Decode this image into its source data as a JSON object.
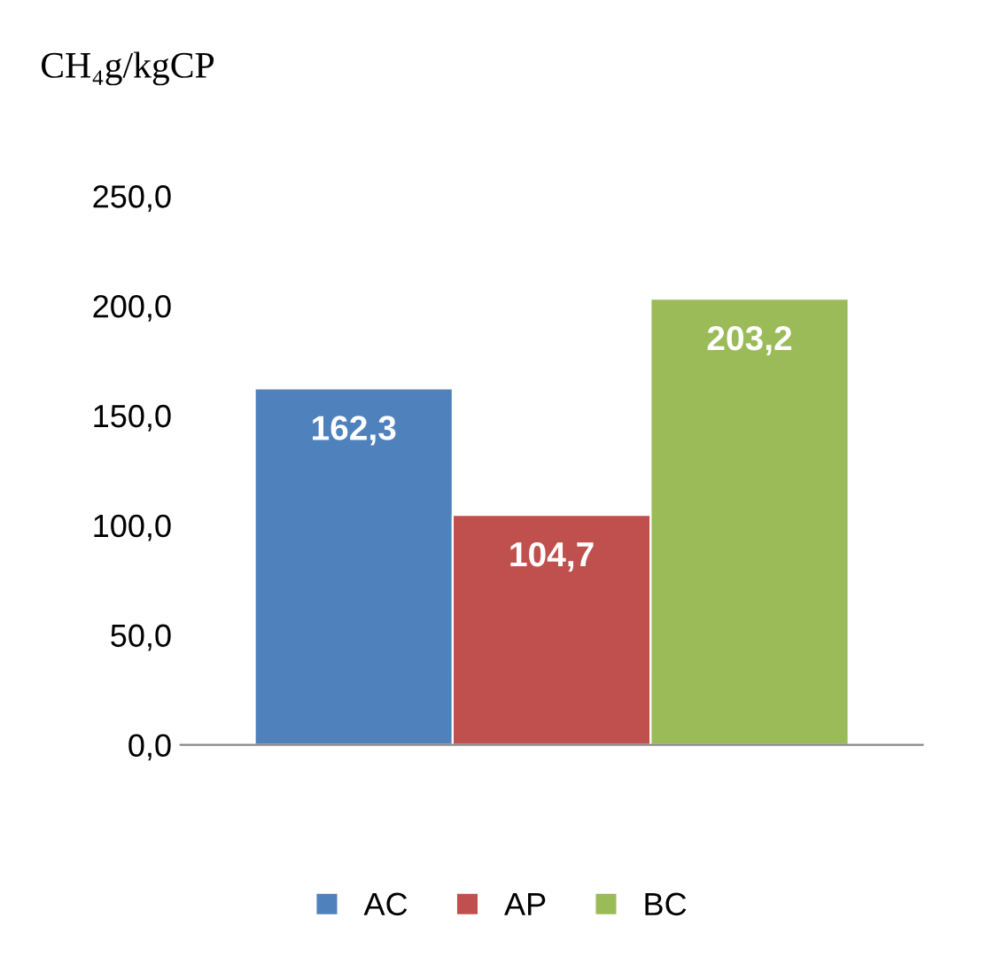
{
  "chart_data": {
    "type": "bar",
    "title": "CH₄g/kgCP",
    "categories": [
      null
    ],
    "series": [
      {
        "name": "AC",
        "color": "#4f81bd",
        "values": [
          162.3
        ],
        "value_labels": [
          "162,3"
        ]
      },
      {
        "name": "AP",
        "color": "#c0504d",
        "values": [
          104.7
        ],
        "value_labels": [
          "104,7"
        ]
      },
      {
        "name": "BC",
        "color": "#9bbb59",
        "values": [
          203.2
        ],
        "value_labels": [
          "203,2"
        ]
      }
    ],
    "ylim": [
      0,
      250
    ],
    "yticks": [
      {
        "value": 0,
        "label": "0,0"
      },
      {
        "value": 50,
        "label": "50,0"
      },
      {
        "value": 100,
        "label": "100,0"
      },
      {
        "value": 150,
        "label": "150,0"
      },
      {
        "value": 200,
        "label": "200,0"
      },
      {
        "value": 250,
        "label": "250,0"
      }
    ],
    "grid": false,
    "legend": "bottom"
  }
}
